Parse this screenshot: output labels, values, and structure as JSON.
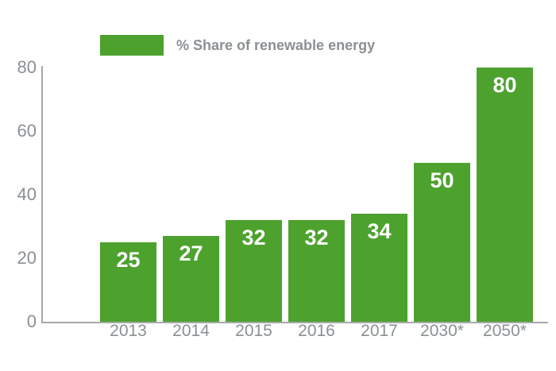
{
  "chart_data": {
    "type": "bar",
    "legend_label": "% Share of renewable energy",
    "legend_position": "top",
    "categories": [
      "2013",
      "2014",
      "2015",
      "2016",
      "2017",
      "2030*",
      "2050*"
    ],
    "values": [
      25,
      27,
      32,
      32,
      34,
      50,
      80
    ],
    "yticks": [
      80,
      60,
      40,
      20,
      0
    ],
    "ylim": [
      0,
      80
    ],
    "grid": false,
    "colors": {
      "bar": "#4da22e",
      "label": "#8a9093",
      "axis": "#a5a9aa",
      "value_text": "#ffffff",
      "background": "#ffffff"
    }
  }
}
